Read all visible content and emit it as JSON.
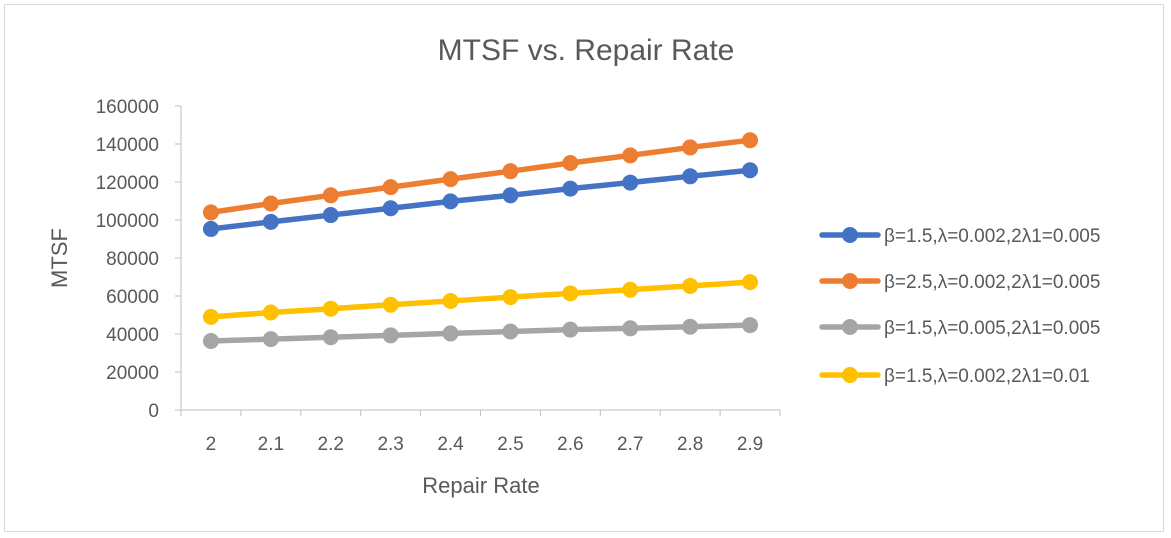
{
  "chart_data": {
    "type": "line",
    "title": "MTSF vs. Repair Rate",
    "xlabel": "Repair Rate",
    "ylabel": "MTSF",
    "categories": [
      "2",
      "2.1",
      "2.2",
      "2.3",
      "2.4",
      "2.5",
      "2.6",
      "2.7",
      "2.8",
      "2.9"
    ],
    "ylim": [
      0,
      160000
    ],
    "yticks": [
      "0",
      "20000",
      "40000",
      "60000",
      "80000",
      "100000",
      "120000",
      "140000",
      "160000"
    ],
    "grid": false,
    "legend_position": "right",
    "series": [
      {
        "name": "β=1.5,λ=0.002,2λ1=0.005",
        "color": "#4472c4",
        "values": [
          95300,
          99000,
          102600,
          106200,
          109800,
          113000,
          116500,
          119700,
          123000,
          126200
        ]
      },
      {
        "name": "β=2.5,λ=0.002,2λ1=0.005",
        "color": "#ed7d31",
        "values": [
          104000,
          108700,
          113000,
          117300,
          121500,
          125700,
          130000,
          134000,
          138200,
          142000
        ]
      },
      {
        "name": "β=1.5,λ=0.005,2λ1=0.005",
        "color": "#a5a5a5",
        "values": [
          36300,
          37300,
          38300,
          39300,
          40300,
          41300,
          42300,
          43000,
          43800,
          44700
        ]
      },
      {
        "name": "β=1.5,λ=0.002,2λ1=0.01",
        "color": "#ffc000",
        "values": [
          49000,
          51300,
          53300,
          55400,
          57400,
          59400,
          61400,
          63300,
          65300,
          67300
        ]
      }
    ]
  }
}
